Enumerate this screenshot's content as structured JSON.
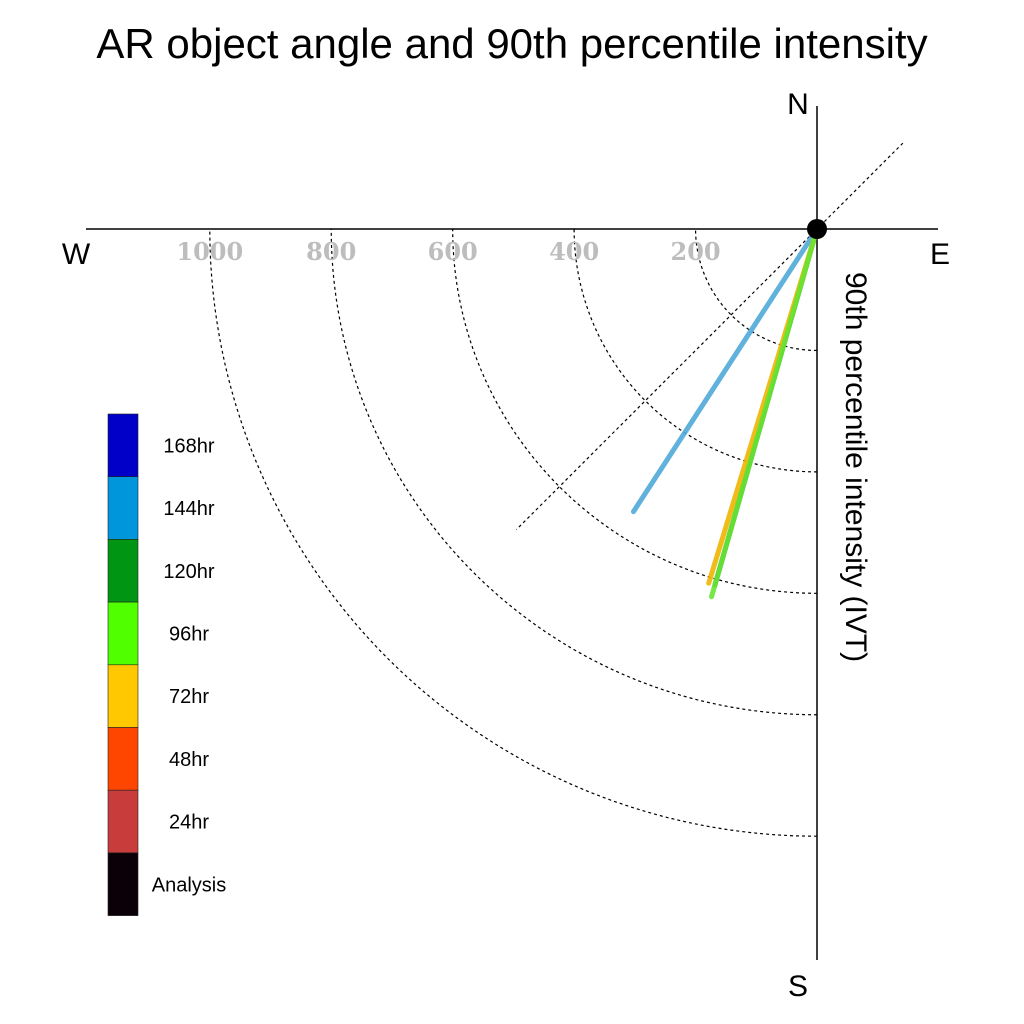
{
  "chart_data": {
    "type": "polar-line",
    "title": "AR object angle and 90th percentile intensity",
    "ylabel": "90th percentile intensity (IVT)",
    "compass": {
      "north": "N",
      "south": "S",
      "east": "E",
      "west": "W"
    },
    "radial_ticks": [
      "1000",
      "800",
      "600",
      "400",
      "200"
    ],
    "radial_tick_values": [
      1000,
      800,
      600,
      400,
      200
    ],
    "rmax": 1000,
    "grid": true,
    "legend_position": "left",
    "legend": [
      {
        "label": "168hr",
        "color": "#0000c8"
      },
      {
        "label": "144hr",
        "color": "#0096dc"
      },
      {
        "label": "120hr",
        "color": "#009614"
      },
      {
        "label": "96hr",
        "color": "#50ff00"
      },
      {
        "label": "72hr",
        "color": "#ffc800"
      },
      {
        "label": "48hr",
        "color": "#ff4600"
      },
      {
        "label": "24hr",
        "color": "#c83c3c"
      },
      {
        "label": "Analysis",
        "color": "#0c0008"
      }
    ],
    "series": [
      {
        "name": "144hr",
        "color": "#4fa8d8",
        "angle_deg": 213,
        "intensity": 555
      },
      {
        "name": "120hr",
        "color": "#2e8b3a",
        "angle_deg": 196,
        "intensity": 610
      },
      {
        "name": "72hr",
        "color": "#f0b400",
        "angle_deg": 197,
        "intensity": 610
      },
      {
        "name": "96hr",
        "color": "#66e633",
        "angle_deg": 196,
        "intensity": 630
      }
    ]
  }
}
